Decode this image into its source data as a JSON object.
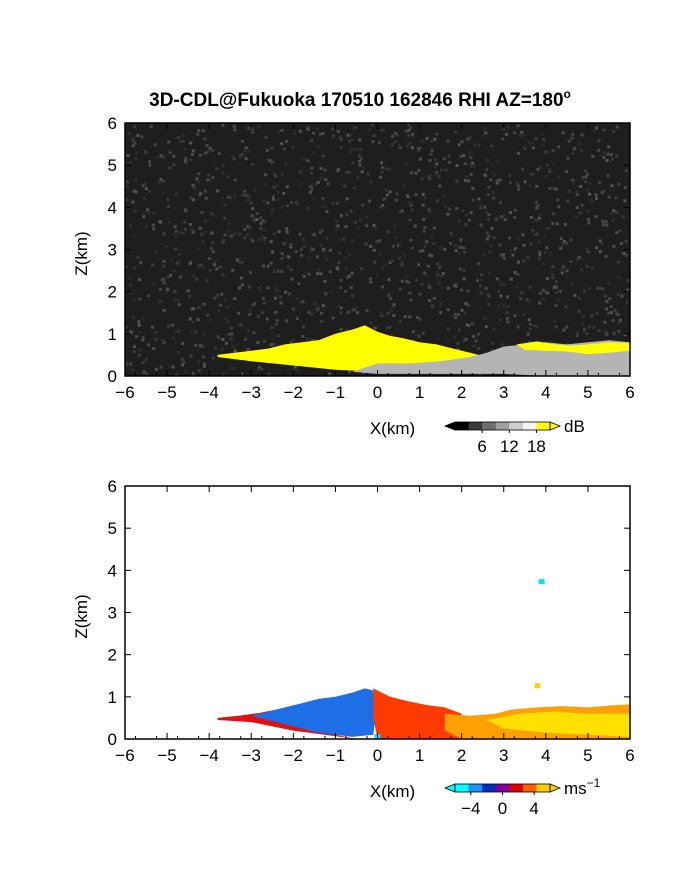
{
  "title": "3D-CDL@Fukuoka 170510 162846 RHI AZ=180",
  "title_superscript": "o",
  "chart_data": [
    {
      "type": "heatmap",
      "panel": "reflectivity",
      "xlabel": "X(km)",
      "ylabel": "Z(km)",
      "xlim": [
        -6,
        6
      ],
      "ylim": [
        0,
        6
      ],
      "xticks": [
        "−6",
        "−5",
        "−4",
        "−3",
        "−2",
        "−1",
        "0",
        "1",
        "2",
        "3",
        "4",
        "5",
        "6"
      ],
      "yticks": [
        "0",
        "1",
        "2",
        "3",
        "4",
        "5",
        "6"
      ],
      "background_color": "#1e1e1e",
      "echo_regions": [
        {
          "name": "yellow-echo",
          "color": "#ffff00",
          "outline": [
            [
              -3.8,
              0.5
            ],
            [
              -3.4,
              0.55
            ],
            [
              -3.0,
              0.6
            ],
            [
              -2.6,
              0.65
            ],
            [
              -2.2,
              0.75
            ],
            [
              -1.8,
              0.8
            ],
            [
              -1.4,
              0.85
            ],
            [
              -1.0,
              1.0
            ],
            [
              -0.6,
              1.1
            ],
            [
              -0.3,
              1.2
            ],
            [
              0.0,
              1.05
            ],
            [
              0.3,
              0.95
            ],
            [
              0.6,
              0.9
            ],
            [
              1.0,
              0.8
            ],
            [
              1.4,
              0.75
            ],
            [
              1.8,
              0.65
            ],
            [
              2.2,
              0.55
            ],
            [
              2.6,
              0.45
            ],
            [
              2.8,
              0.35
            ],
            [
              2.0,
              0.25
            ],
            [
              1.0,
              0.2
            ],
            [
              0.0,
              0.1
            ],
            [
              -1.0,
              0.15
            ],
            [
              -2.0,
              0.25
            ],
            [
              -3.0,
              0.35
            ],
            [
              -3.8,
              0.45
            ]
          ]
        },
        {
          "name": "grey-echo",
          "color": "#b4b4b4",
          "outline": [
            [
              -0.6,
              0.1
            ],
            [
              0.0,
              0.05
            ],
            [
              1.0,
              0.05
            ],
            [
              2.0,
              0.05
            ],
            [
              3.0,
              0.05
            ],
            [
              4.0,
              0.0
            ],
            [
              5.0,
              0.0
            ],
            [
              6.0,
              0.0
            ],
            [
              6.0,
              0.8
            ],
            [
              5.5,
              0.85
            ],
            [
              5.0,
              0.8
            ],
            [
              4.5,
              0.75
            ],
            [
              4.0,
              0.8
            ],
            [
              3.5,
              0.75
            ],
            [
              3.0,
              0.7
            ],
            [
              2.6,
              0.55
            ],
            [
              2.2,
              0.45
            ],
            [
              1.5,
              0.35
            ],
            [
              0.8,
              0.3
            ],
            [
              0.0,
              0.3
            ]
          ]
        },
        {
          "name": "yellow-echo-right",
          "color": "#ffff00",
          "outline": [
            [
              3.3,
              0.75
            ],
            [
              3.8,
              0.82
            ],
            [
              4.2,
              0.75
            ],
            [
              4.6,
              0.72
            ],
            [
              5.0,
              0.75
            ],
            [
              5.5,
              0.8
            ],
            [
              6.0,
              0.78
            ],
            [
              6.0,
              0.6
            ],
            [
              5.5,
              0.55
            ],
            [
              5.0,
              0.52
            ],
            [
              4.5,
              0.58
            ],
            [
              4.0,
              0.6
            ],
            [
              3.5,
              0.62
            ]
          ]
        }
      ],
      "colorbar": {
        "label": "dB",
        "ticks": [
          "6",
          "12",
          "18"
        ],
        "range": [
          0,
          21
        ],
        "colors": [
          "#000000",
          "#3a3a3a",
          "#6e6e6e",
          "#a0a0a0",
          "#cfcfcf",
          "#f4f4f4",
          "#ffff00"
        ]
      }
    },
    {
      "type": "heatmap",
      "panel": "doppler-velocity",
      "xlabel": "X(km)",
      "ylabel": "Z(km)",
      "xlim": [
        -6,
        6
      ],
      "ylim": [
        0,
        6
      ],
      "xticks": [
        "−6",
        "−5",
        "−4",
        "−3",
        "−2",
        "−1",
        "0",
        "1",
        "2",
        "3",
        "4",
        "5",
        "6"
      ],
      "yticks": [
        "0",
        "1",
        "2",
        "3",
        "4",
        "5",
        "6"
      ],
      "background_color": "#ffffff",
      "echo_regions": [
        {
          "name": "red-edge",
          "color": "#e01010",
          "outline": [
            [
              -3.8,
              0.5
            ],
            [
              -3.3,
              0.55
            ],
            [
              -2.8,
              0.62
            ],
            [
              -2.4,
              0.7
            ],
            [
              -2.0,
              0.6
            ],
            [
              -1.0,
              0.1
            ],
            [
              -0.5,
              0.0
            ],
            [
              -2.0,
              0.2
            ],
            [
              -3.0,
              0.4
            ],
            [
              -3.8,
              0.45
            ]
          ]
        },
        {
          "name": "blue-approaching",
          "color": "#1e6ee6",
          "outline": [
            [
              -3.0,
              0.55
            ],
            [
              -2.6,
              0.65
            ],
            [
              -2.2,
              0.75
            ],
            [
              -1.8,
              0.85
            ],
            [
              -1.4,
              0.95
            ],
            [
              -1.0,
              1.0
            ],
            [
              -0.6,
              1.1
            ],
            [
              -0.3,
              1.2
            ],
            [
              -0.1,
              1.15
            ],
            [
              -0.05,
              0.5
            ],
            [
              -0.1,
              0.1
            ],
            [
              -0.6,
              0.05
            ],
            [
              -1.4,
              0.15
            ],
            [
              -2.2,
              0.35
            ],
            [
              -2.8,
              0.5
            ]
          ]
        },
        {
          "name": "red-receding",
          "color": "#ff3a00",
          "outline": [
            [
              -0.1,
              1.2
            ],
            [
              0.3,
              1.0
            ],
            [
              0.7,
              0.9
            ],
            [
              1.2,
              0.8
            ],
            [
              1.6,
              0.75
            ],
            [
              2.0,
              0.6
            ],
            [
              2.0,
              0.0
            ],
            [
              0.0,
              0.0
            ],
            [
              -0.1,
              0.5
            ]
          ]
        },
        {
          "name": "orange-receding",
          "color": "#ffa000",
          "outline": [
            [
              1.6,
              0.6
            ],
            [
              2.2,
              0.55
            ],
            [
              2.8,
              0.6
            ],
            [
              3.2,
              0.7
            ],
            [
              3.8,
              0.75
            ],
            [
              4.4,
              0.78
            ],
            [
              5.0,
              0.75
            ],
            [
              5.6,
              0.8
            ],
            [
              6.0,
              0.82
            ],
            [
              6.0,
              0.0
            ],
            [
              4.0,
              0.0
            ],
            [
              2.0,
              0.0
            ],
            [
              1.6,
              0.2
            ]
          ]
        },
        {
          "name": "yellow-far",
          "color": "#ffe000",
          "outline": [
            [
              2.6,
              0.45
            ],
            [
              3.4,
              0.6
            ],
            [
              4.2,
              0.65
            ],
            [
              5.0,
              0.6
            ],
            [
              6.0,
              0.6
            ],
            [
              6.0,
              0.05
            ],
            [
              5.0,
              0.1
            ],
            [
              4.0,
              0.15
            ],
            [
              3.0,
              0.25
            ]
          ]
        }
      ],
      "isolated_points": [
        {
          "x": 3.9,
          "z": 3.72,
          "color": "#00e5ff"
        },
        {
          "x": 3.8,
          "z": 1.25,
          "color": "#ffd000"
        },
        {
          "x": 0.0,
          "z": 0.05,
          "color": "#00e5ff"
        }
      ],
      "colorbar": {
        "label": "ms",
        "label_superscript": "−1",
        "ticks": [
          "−4",
          "0",
          "4"
        ],
        "range": [
          -6,
          6
        ],
        "colors": [
          "#00ffff",
          "#1e90ff",
          "#0030c0",
          "#8000a0",
          "#e00000",
          "#ff6000",
          "#ffd000"
        ]
      }
    }
  ]
}
